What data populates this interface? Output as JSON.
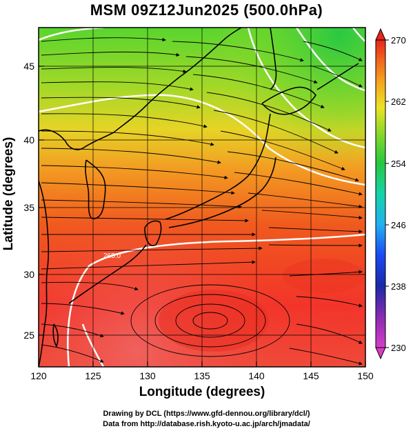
{
  "title": "MSM 09Z12Jun2025 (500.0hPa)",
  "xaxis": {
    "label": "Longitude (degrees)",
    "ticks": [
      "120",
      "125",
      "130",
      "135",
      "140",
      "145",
      "150"
    ],
    "range": [
      120,
      150
    ]
  },
  "yaxis": {
    "label": "Latitude  (degrees)",
    "ticks": [
      "25",
      "30",
      "35",
      "40",
      "45"
    ],
    "range": [
      22.4,
      47.6
    ]
  },
  "colorbar": {
    "ticks": [
      "270",
      "262",
      "254",
      "246",
      "238",
      "230"
    ],
    "min": 230,
    "max": 270,
    "colors": [
      "#d63ec9",
      "#0b1f9e",
      "#1a3cf2",
      "#21a9f0",
      "#14d4b4",
      "#28c828",
      "#8ed82a",
      "#ece324",
      "#f5a821",
      "#f06a1e",
      "#e8261c"
    ]
  },
  "contour_label": "265.0",
  "credits": {
    "line1": "Drawing by DCL (https://www.gfd-dennou.org/library/dcl/)",
    "line2": "Data from http://database.rish.kyoto-u.ac.jp/arch/jmadata/"
  }
}
